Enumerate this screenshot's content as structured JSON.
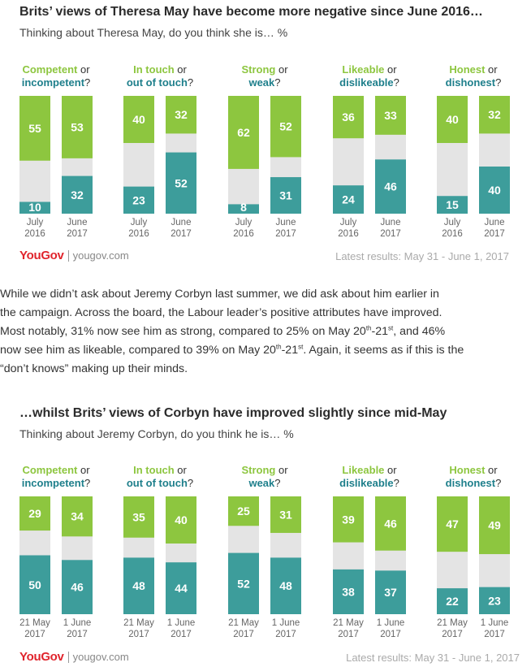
{
  "colors": {
    "positive": "#8dc63f",
    "negative": "#3d9d9b",
    "dontknow": "#e4e4e4",
    "negative_label": "#1e7f8b",
    "logo": "#e0242c"
  },
  "brand": {
    "logo": "YouGov",
    "url": "yougov.com",
    "latest": "Latest results: May 31 - June 1, 2017"
  },
  "paragraph": {
    "l1": "While we didn’t ask about Jeremy Corbyn last summer, we did ask about him earlier in",
    "l2": "the campaign.  Across the board, the Labour leader’s positive attributes have improved.",
    "l3a": "Most notably, 31% now see him as strong, compared to 25% on May 20",
    "l3s1": "th",
    "l3b": "-21",
    "l3s2": "st",
    "l3c": ", and 46%",
    "l4a": "now see him as likeable, compared to 39% on May 20",
    "l4s1": "th",
    "l4b": "-21",
    "l4s2": "st",
    "l4c": ". Again, it seems as if this is the",
    "l5": "“don’t knows” making up their minds."
  },
  "chart_data": [
    {
      "type": "bar",
      "title": "Brits’ views of Theresa May have become more negative since June 2016…",
      "subtitle": "Thinking about Theresa May, do you think she is… %",
      "periods": [
        [
          "July",
          "2016"
        ],
        [
          "June",
          "2017"
        ]
      ],
      "attributes": [
        {
          "pos": "Competent",
          "or": " or",
          "neg": "incompetent",
          "q": "?",
          "values": [
            {
              "positive": 55,
              "negative": 10
            },
            {
              "positive": 53,
              "negative": 32
            }
          ]
        },
        {
          "pos": "In touch",
          "or": " or",
          "neg": "out of touch",
          "q": "?",
          "values": [
            {
              "positive": 40,
              "negative": 23
            },
            {
              "positive": 32,
              "negative": 52
            }
          ]
        },
        {
          "pos": "Strong",
          "or": " or",
          "neg": "weak",
          "q": "?",
          "values": [
            {
              "positive": 62,
              "negative": 8
            },
            {
              "positive": 52,
              "negative": 31
            }
          ]
        },
        {
          "pos": "Likeable",
          "or": " or",
          "neg": "dislikeable",
          "q": "?",
          "values": [
            {
              "positive": 36,
              "negative": 24
            },
            {
              "positive": 33,
              "negative": 46
            }
          ]
        },
        {
          "pos": "Honest",
          "or": " or",
          "neg": "dishonest",
          "q": "?",
          "values": [
            {
              "positive": 40,
              "negative": 15
            },
            {
              "positive": 32,
              "negative": 40
            }
          ]
        }
      ]
    },
    {
      "type": "bar",
      "title": "…whilst Brits’ views of Corbyn have improved slightly since mid-May",
      "subtitle": "Thinking about Jeremy Corbyn, do you think he is… %",
      "periods": [
        [
          "21 May",
          "2017"
        ],
        [
          "1 June",
          "2017"
        ]
      ],
      "attributes": [
        {
          "pos": "Competent",
          "or": " or",
          "neg": "incompetent",
          "q": "?",
          "values": [
            {
              "positive": 29,
              "negative": 50
            },
            {
              "positive": 34,
              "negative": 46
            }
          ]
        },
        {
          "pos": "In touch",
          "or": " or",
          "neg": "out of touch",
          "q": "?",
          "values": [
            {
              "positive": 35,
              "negative": 48
            },
            {
              "positive": 40,
              "negative": 44
            }
          ]
        },
        {
          "pos": "Strong",
          "or": " or",
          "neg": "weak",
          "q": "?",
          "values": [
            {
              "positive": 25,
              "negative": 52
            },
            {
              "positive": 31,
              "negative": 48
            }
          ]
        },
        {
          "pos": "Likeable",
          "or": " or",
          "neg": "dislikeable",
          "q": "?",
          "values": [
            {
              "positive": 39,
              "negative": 38
            },
            {
              "positive": 46,
              "negative": 37
            }
          ]
        },
        {
          "pos": "Honest",
          "or": " or",
          "neg": "dishonest",
          "q": "?",
          "values": [
            {
              "positive": 47,
              "negative": 22
            },
            {
              "positive": 49,
              "negative": 23
            }
          ]
        }
      ]
    }
  ]
}
